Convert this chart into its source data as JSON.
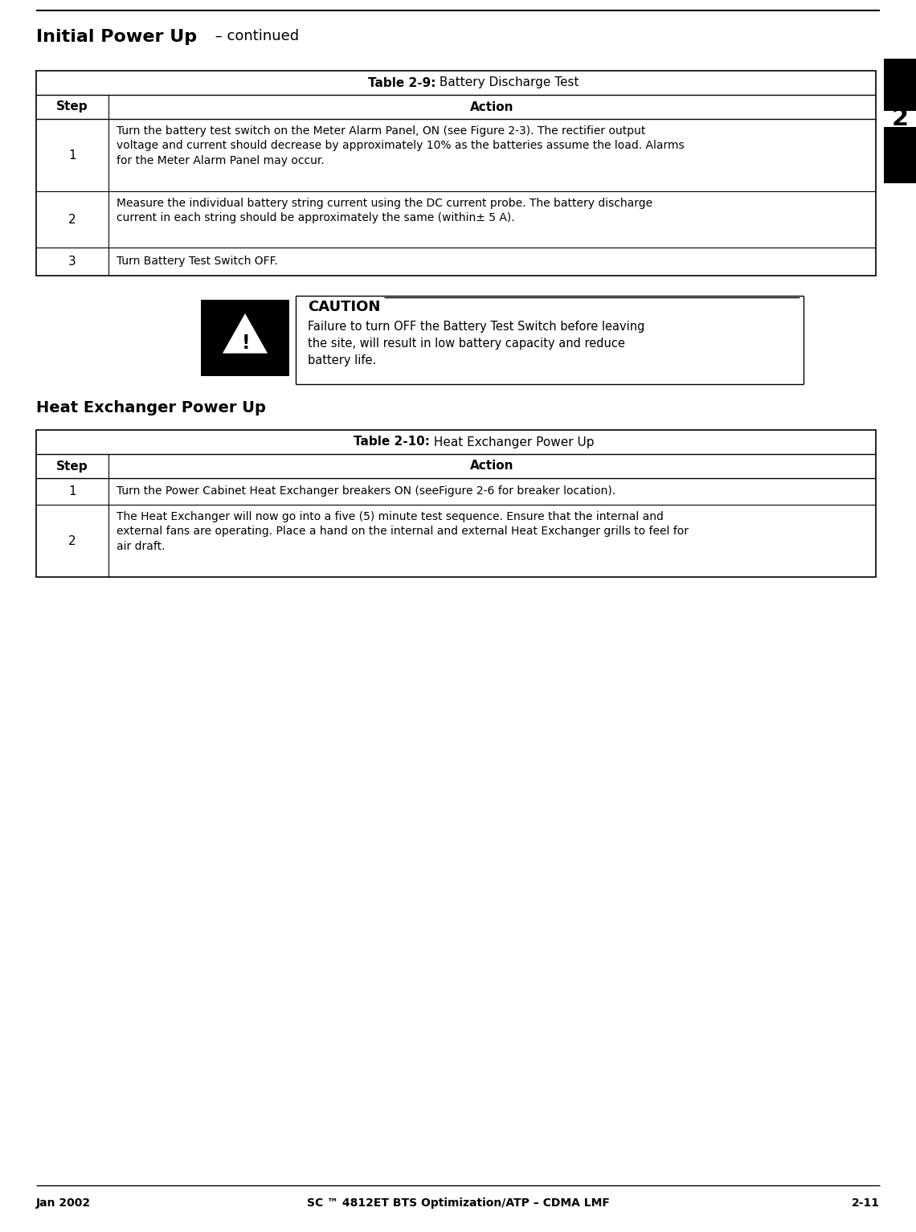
{
  "page_title_bold": "Initial Power Up",
  "page_title_regular": " – continued",
  "footer_left": "Jan 2002",
  "footer_center": "SC ™ 4812ET BTS Optimization/ATP – CDMA LMF",
  "footer_right": "2-11",
  "table1_title_bold": "Table 2-9:",
  "table1_title_regular": " Battery Discharge Test",
  "table1_col1_header": "Step",
  "table1_col2_header": "Action",
  "table1_rows": [
    {
      "step": "1",
      "action": "Turn the battery test switch on the Meter Alarm Panel, ON (see Figure 2-3). The rectifier output\nvoltage and current should decrease by approximately 10% as the batteries assume the load. Alarms\nfor the Meter Alarm Panel may occur."
    },
    {
      "step": "2",
      "action": "Measure the individual battery string current using the DC current probe. The battery discharge\ncurrent in each string should be approximately the same (within± 5 A)."
    },
    {
      "step": "3",
      "action": "Turn Battery Test Switch OFF."
    }
  ],
  "caution_title": "CAUTION",
  "caution_text": "Failure to turn OFF the Battery Test Switch before leaving\nthe site, will result in low battery capacity and reduce\nbattery life.",
  "table2_title_bold": "Table 2-10:",
  "table2_title_regular": " Heat Exchanger Power Up",
  "table2_section_header": "Heat Exchanger Power Up",
  "table2_col1_header": "Step",
  "table2_col2_header": "Action",
  "table2_rows": [
    {
      "step": "1",
      "action": "Turn the Power Cabinet Heat Exchanger breakers ON (seeFigure 2-6 for breaker location)."
    },
    {
      "step": "2",
      "action": "The Heat Exchanger will now go into a five (5) minute test sequence. Ensure that the internal and\nexternal fans are operating. Place a hand on the internal and external Heat Exchanger grills to feel for\nair draft."
    }
  ],
  "tab_number": "2",
  "bg_color": "#ffffff"
}
